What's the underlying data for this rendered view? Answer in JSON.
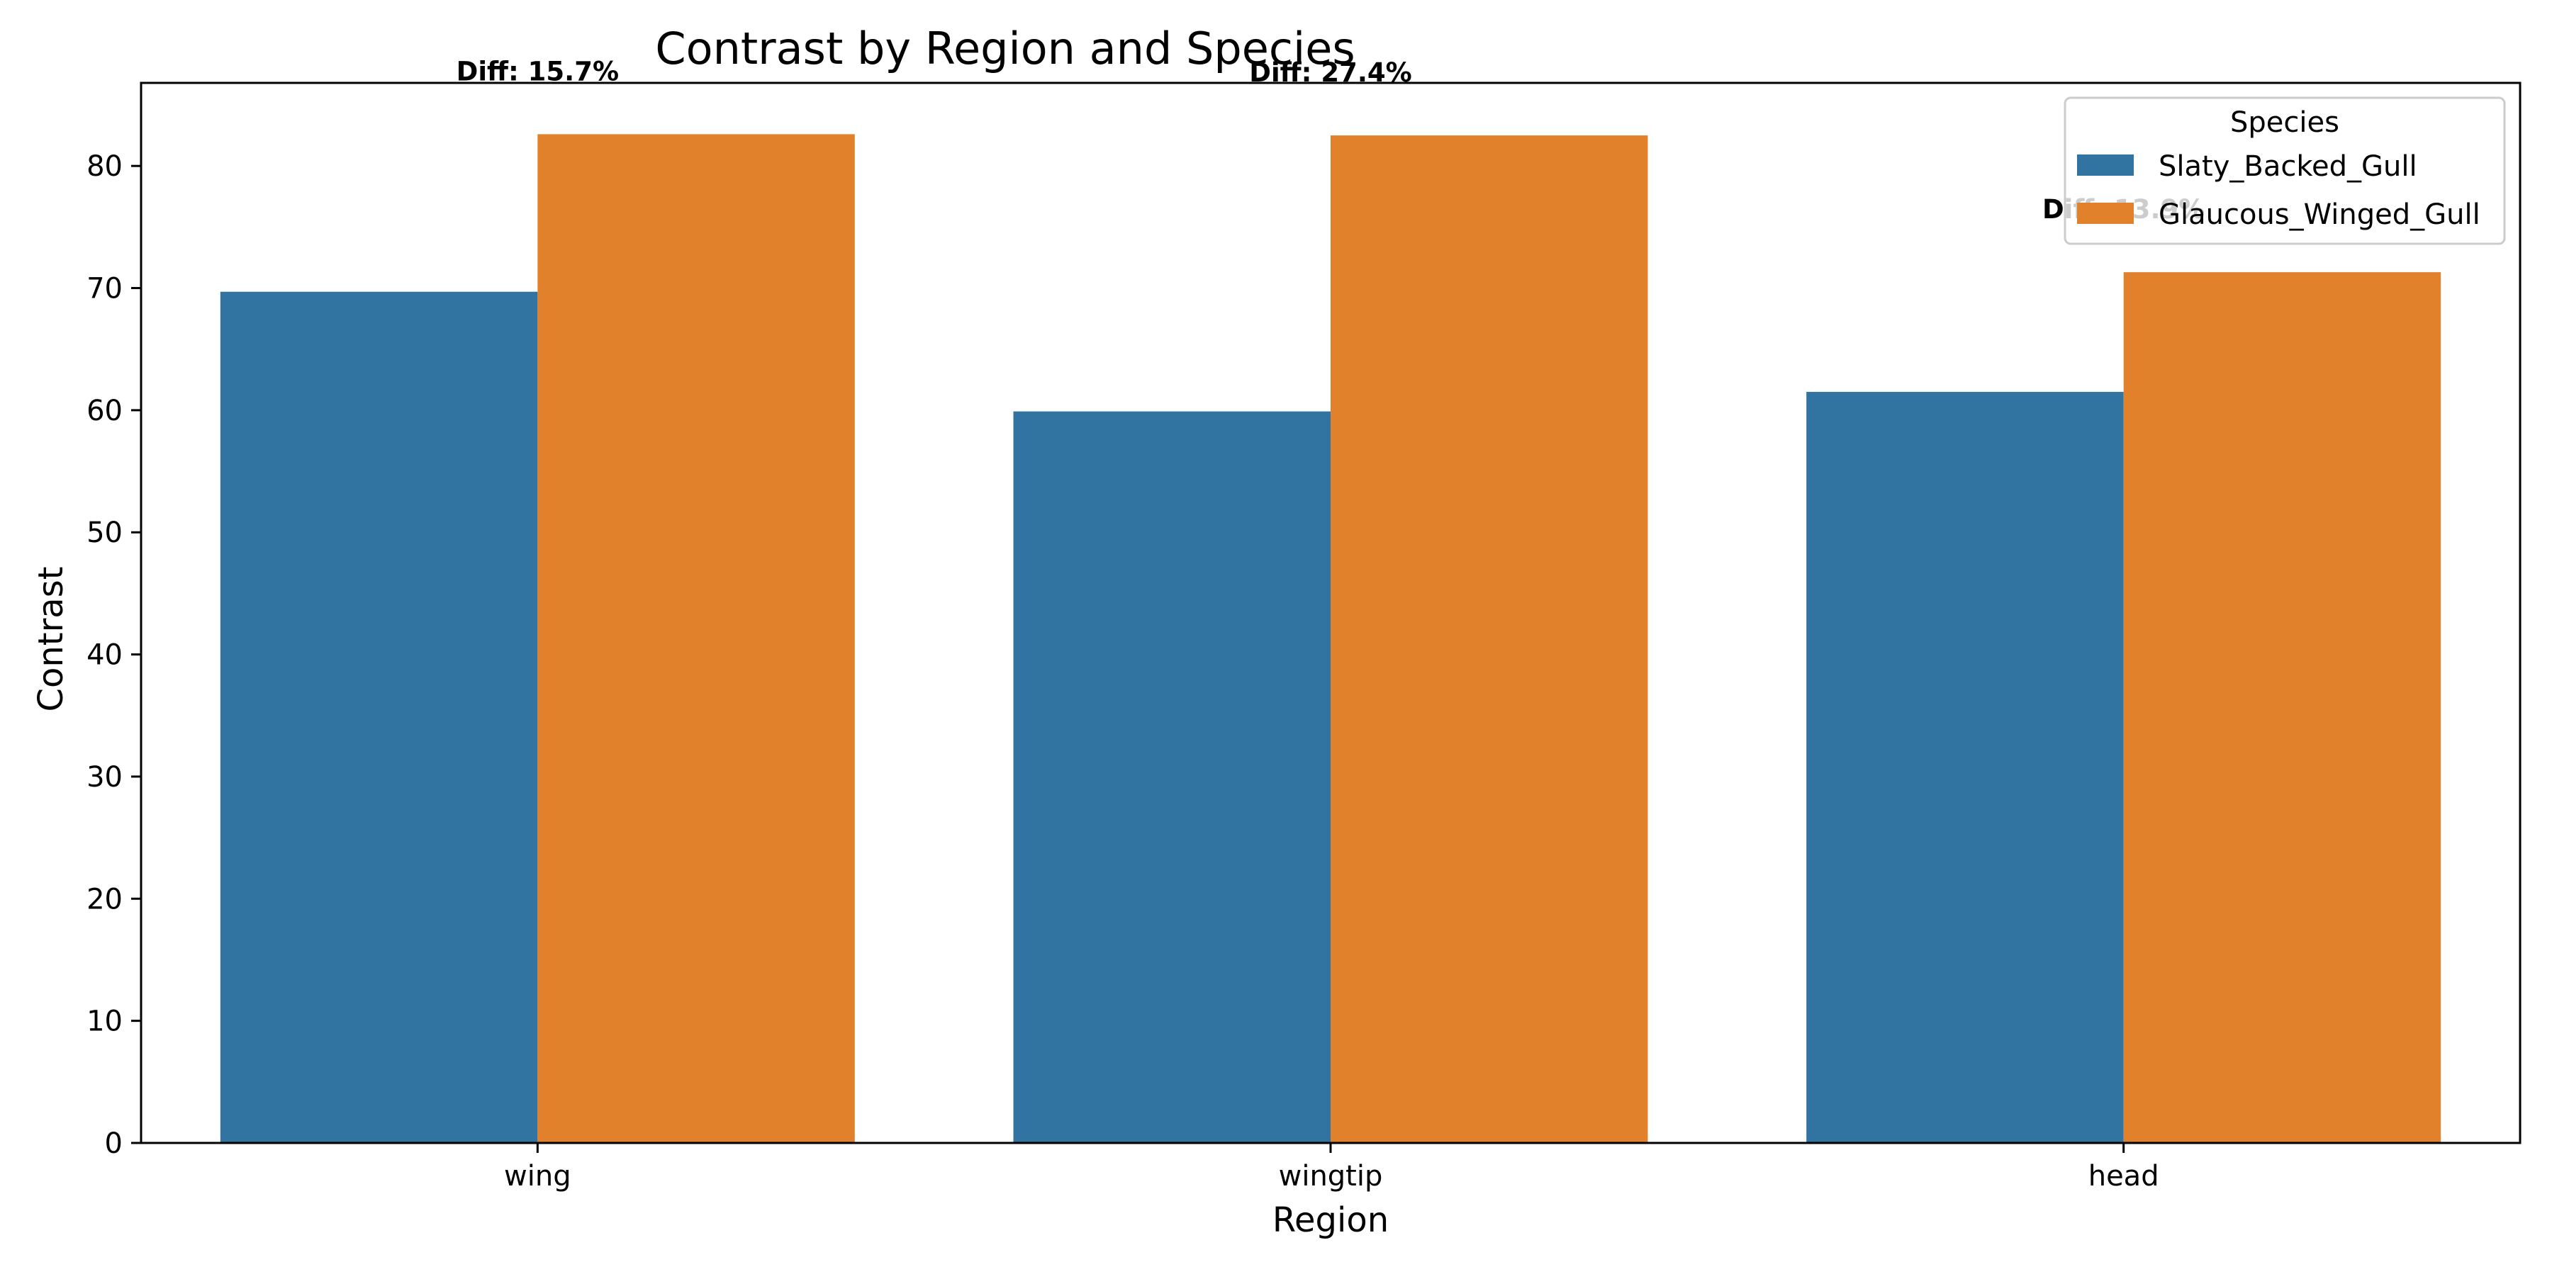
{
  "chart_data": {
    "type": "bar",
    "title": "Contrast by Region and Species",
    "xlabel": "Region",
    "ylabel": "Contrast",
    "categories": [
      "wing",
      "wingtip",
      "head"
    ],
    "series": [
      {
        "name": "Slaty_Backed_Gull",
        "values": [
          69.7,
          59.9,
          61.5
        ],
        "color": "#3274a1"
      },
      {
        "name": "Glaucous_Winged_Gull",
        "values": [
          82.6,
          82.5,
          71.3
        ],
        "color": "#e1812c"
      }
    ],
    "annotations": [
      "Diff: 15.7%",
      "Diff: 27.4%",
      "Diff: 13.9%"
    ],
    "ylim": [
      0,
      86.8
    ],
    "yticks": [
      0,
      10,
      20,
      30,
      40,
      50,
      60,
      70,
      80
    ],
    "legend": {
      "title": "Species",
      "placement": "top-right"
    },
    "grid": false
  }
}
